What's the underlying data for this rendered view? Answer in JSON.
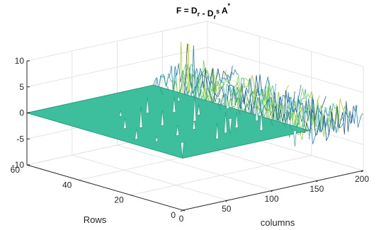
{
  "chart_data": {
    "type": "surface",
    "title": {
      "parts": [
        {
          "t": "F = D",
          "s": ""
        },
        {
          "t": "r",
          "s": "sub"
        },
        {
          "t": " - D",
          "s": ""
        },
        {
          "t": "r",
          "s": "sub"
        },
        {
          "t": "s",
          "s": "sup"
        },
        {
          "t": " A",
          "s": ""
        },
        {
          "t": "*",
          "s": "sup"
        }
      ]
    },
    "xlabel": "columns",
    "ylabel": "Rows",
    "zlabel": "",
    "xlim": [
      0,
      200
    ],
    "ylim": [
      0,
      60
    ],
    "zlim": [
      -10,
      10
    ],
    "xticks": [
      "0",
      "50",
      "100",
      "150",
      "200"
    ],
    "yticks": [
      "0",
      "20",
      "40",
      "60"
    ],
    "zticks": [
      "-10",
      "-5",
      "0",
      "5",
      "10"
    ],
    "grid": true,
    "base_value": 0,
    "surface_extent": {
      "columns": [
        0,
        140
      ],
      "rows": [
        0,
        60
      ]
    },
    "noisy_region": {
      "columns": [
        140,
        200
      ],
      "rows": [
        0,
        60
      ],
      "amplitude": 4
    },
    "max_peak": {
      "column": 150,
      "row": 50,
      "value": 9
    },
    "spikes": [
      {
        "column": 12,
        "row": 22,
        "value": 2
      },
      {
        "column": 20,
        "row": 17,
        "value": 1
      },
      {
        "column": 28,
        "row": 32,
        "value": 2
      },
      {
        "column": 34,
        "row": 12,
        "value": -3
      },
      {
        "column": 40,
        "row": 30,
        "value": 4
      },
      {
        "column": 46,
        "row": 18,
        "value": 2
      },
      {
        "column": 52,
        "row": 42,
        "value": 1
      },
      {
        "column": 58,
        "row": 28,
        "value": 3
      },
      {
        "column": 64,
        "row": 9,
        "value": 3
      },
      {
        "column": 70,
        "row": 20,
        "value": 2
      },
      {
        "column": 76,
        "row": 40,
        "value": 3
      },
      {
        "column": 82,
        "row": 12,
        "value": 4
      },
      {
        "column": 88,
        "row": 26,
        "value": 5
      },
      {
        "column": 94,
        "row": 36,
        "value": 3
      },
      {
        "column": 100,
        "row": 14,
        "value": 3
      },
      {
        "column": 104,
        "row": 30,
        "value": 2
      },
      {
        "column": 110,
        "row": 8,
        "value": 4
      },
      {
        "column": 116,
        "row": 22,
        "value": -3
      },
      {
        "column": 122,
        "row": 44,
        "value": 1
      },
      {
        "column": 128,
        "row": 16,
        "value": 3
      },
      {
        "column": 130,
        "row": 2,
        "value": -3
      },
      {
        "column": 136,
        "row": 30,
        "value": 2
      }
    ],
    "colors": {
      "surface": "#3dbf9d",
      "surface_edge": "#2a9a7f",
      "spike": "#f4f6f5",
      "noise_lines": [
        "#2c83c4",
        "#3dbf9d",
        "#7fd34e",
        "#a8cf3a",
        "#23608e"
      ],
      "peak": "#e6e62b",
      "axis": "#262626",
      "grid": "#e3e3e3"
    }
  }
}
